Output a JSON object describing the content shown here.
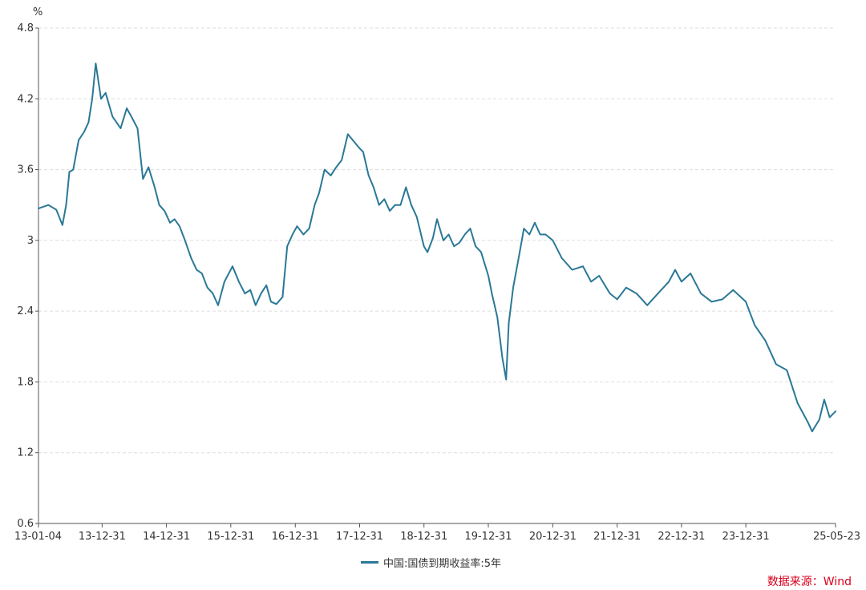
{
  "colors": {
    "series": "#2a7896",
    "grid": "#dddddd",
    "axis": "#555555",
    "source_text": "#d9001b"
  },
  "source_text": "数据来源：Wind",
  "chart_data": {
    "type": "line",
    "title": "",
    "xlabel": "",
    "ylabel": "%",
    "ylim": [
      0.6,
      4.8
    ],
    "yticks": [
      0.6,
      1.2,
      1.8,
      2.4,
      3,
      3.6,
      4.2,
      4.8
    ],
    "xlim": [
      "2013-01-04",
      "2025-05-23"
    ],
    "xticks": [
      "13-01-04",
      "13-12-31",
      "14-12-31",
      "15-12-31",
      "16-12-31",
      "17-12-31",
      "18-12-31",
      "19-12-31",
      "20-12-31",
      "21-12-31",
      "22-12-31",
      "23-12-31",
      "25-05-23"
    ],
    "grid": "horizontal-dashed",
    "legend": "bottom-center",
    "series": [
      {
        "name": "中国:国债到期收益率:5年",
        "x": [
          "2013-01-04",
          "2013-03-01",
          "2013-04-15",
          "2013-05-20",
          "2013-06-10",
          "2013-06-28",
          "2013-07-20",
          "2013-08-20",
          "2013-09-20",
          "2013-10-15",
          "2013-11-05",
          "2013-11-25",
          "2013-12-25",
          "2014-01-20",
          "2014-02-28",
          "2014-04-15",
          "2014-05-20",
          "2014-06-15",
          "2014-07-20",
          "2014-08-20",
          "2014-09-20",
          "2014-10-25",
          "2014-11-20",
          "2014-12-20",
          "2015-01-20",
          "2015-02-15",
          "2015-03-15",
          "2015-04-15",
          "2015-05-20",
          "2015-06-20",
          "2015-07-20",
          "2015-08-20",
          "2015-09-20",
          "2015-10-20",
          "2015-11-25",
          "2016-01-10",
          "2016-02-15",
          "2016-03-20",
          "2016-04-20",
          "2016-05-20",
          "2016-06-20",
          "2016-07-20",
          "2016-08-15",
          "2016-09-15",
          "2016-10-20",
          "2016-11-15",
          "2016-12-15",
          "2017-01-10",
          "2017-02-15",
          "2017-03-20",
          "2017-04-20",
          "2017-05-15",
          "2017-06-15",
          "2017-07-20",
          "2017-08-20",
          "2017-09-20",
          "2017-10-25",
          "2017-11-22",
          "2017-12-31",
          "2018-01-20",
          "2018-02-20",
          "2018-03-20",
          "2018-04-20",
          "2018-05-20",
          "2018-06-20",
          "2018-07-20",
          "2018-08-20",
          "2018-09-20",
          "2018-10-20",
          "2018-11-20",
          "2018-12-31",
          "2019-01-20",
          "2019-02-20",
          "2019-03-15",
          "2019-04-20",
          "2019-05-20",
          "2019-06-20",
          "2019-07-20",
          "2019-08-20",
          "2019-09-20",
          "2019-10-20",
          "2019-11-20",
          "2019-12-31",
          "2020-01-20",
          "2020-02-20",
          "2020-03-20",
          "2020-04-10",
          "2020-04-25",
          "2020-05-20",
          "2020-06-20",
          "2020-07-20",
          "2020-08-20",
          "2020-09-20",
          "2020-10-20",
          "2020-11-20",
          "2020-12-31",
          "2021-02-20",
          "2021-04-20",
          "2021-06-20",
          "2021-08-05",
          "2021-09-20",
          "2021-11-20",
          "2021-12-31",
          "2022-02-20",
          "2022-04-20",
          "2022-06-20",
          "2022-08-20",
          "2022-10-20",
          "2022-11-25",
          "2022-12-31",
          "2023-02-20",
          "2023-04-20",
          "2023-06-20",
          "2023-08-20",
          "2023-10-20",
          "2023-12-31",
          "2024-02-20",
          "2024-04-20",
          "2024-06-20",
          "2024-08-20",
          "2024-10-20",
          "2024-12-20",
          "2025-01-10",
          "2025-02-20",
          "2025-03-20",
          "2025-04-20",
          "2025-05-23"
        ],
        "values": [
          3.27,
          3.3,
          3.26,
          3.13,
          3.3,
          3.58,
          3.6,
          3.85,
          3.92,
          4.0,
          4.2,
          4.5,
          4.2,
          4.25,
          4.05,
          3.95,
          4.12,
          4.05,
          3.95,
          3.52,
          3.62,
          3.45,
          3.3,
          3.25,
          3.15,
          3.18,
          3.12,
          3.0,
          2.85,
          2.75,
          2.72,
          2.6,
          2.55,
          2.45,
          2.65,
          2.78,
          2.65,
          2.55,
          2.58,
          2.45,
          2.55,
          2.62,
          2.48,
          2.46,
          2.52,
          2.95,
          3.05,
          3.12,
          3.05,
          3.1,
          3.3,
          3.4,
          3.6,
          3.55,
          3.62,
          3.68,
          3.9,
          3.85,
          3.78,
          3.75,
          3.55,
          3.45,
          3.3,
          3.35,
          3.25,
          3.3,
          3.3,
          3.45,
          3.3,
          3.2,
          2.95,
          2.9,
          3.02,
          3.18,
          3.0,
          3.05,
          2.95,
          2.98,
          3.05,
          3.1,
          2.95,
          2.9,
          2.7,
          2.55,
          2.35,
          2.0,
          1.82,
          2.3,
          2.6,
          2.85,
          3.1,
          3.05,
          3.15,
          3.05,
          3.05,
          3.0,
          2.85,
          2.75,
          2.78,
          2.65,
          2.7,
          2.55,
          2.5,
          2.6,
          2.55,
          2.45,
          2.55,
          2.65,
          2.75,
          2.65,
          2.72,
          2.55,
          2.48,
          2.5,
          2.58,
          2.48,
          2.28,
          2.15,
          1.95,
          1.9,
          1.62,
          1.45,
          1.38,
          1.48,
          1.65,
          1.5,
          1.55
        ]
      }
    ]
  }
}
